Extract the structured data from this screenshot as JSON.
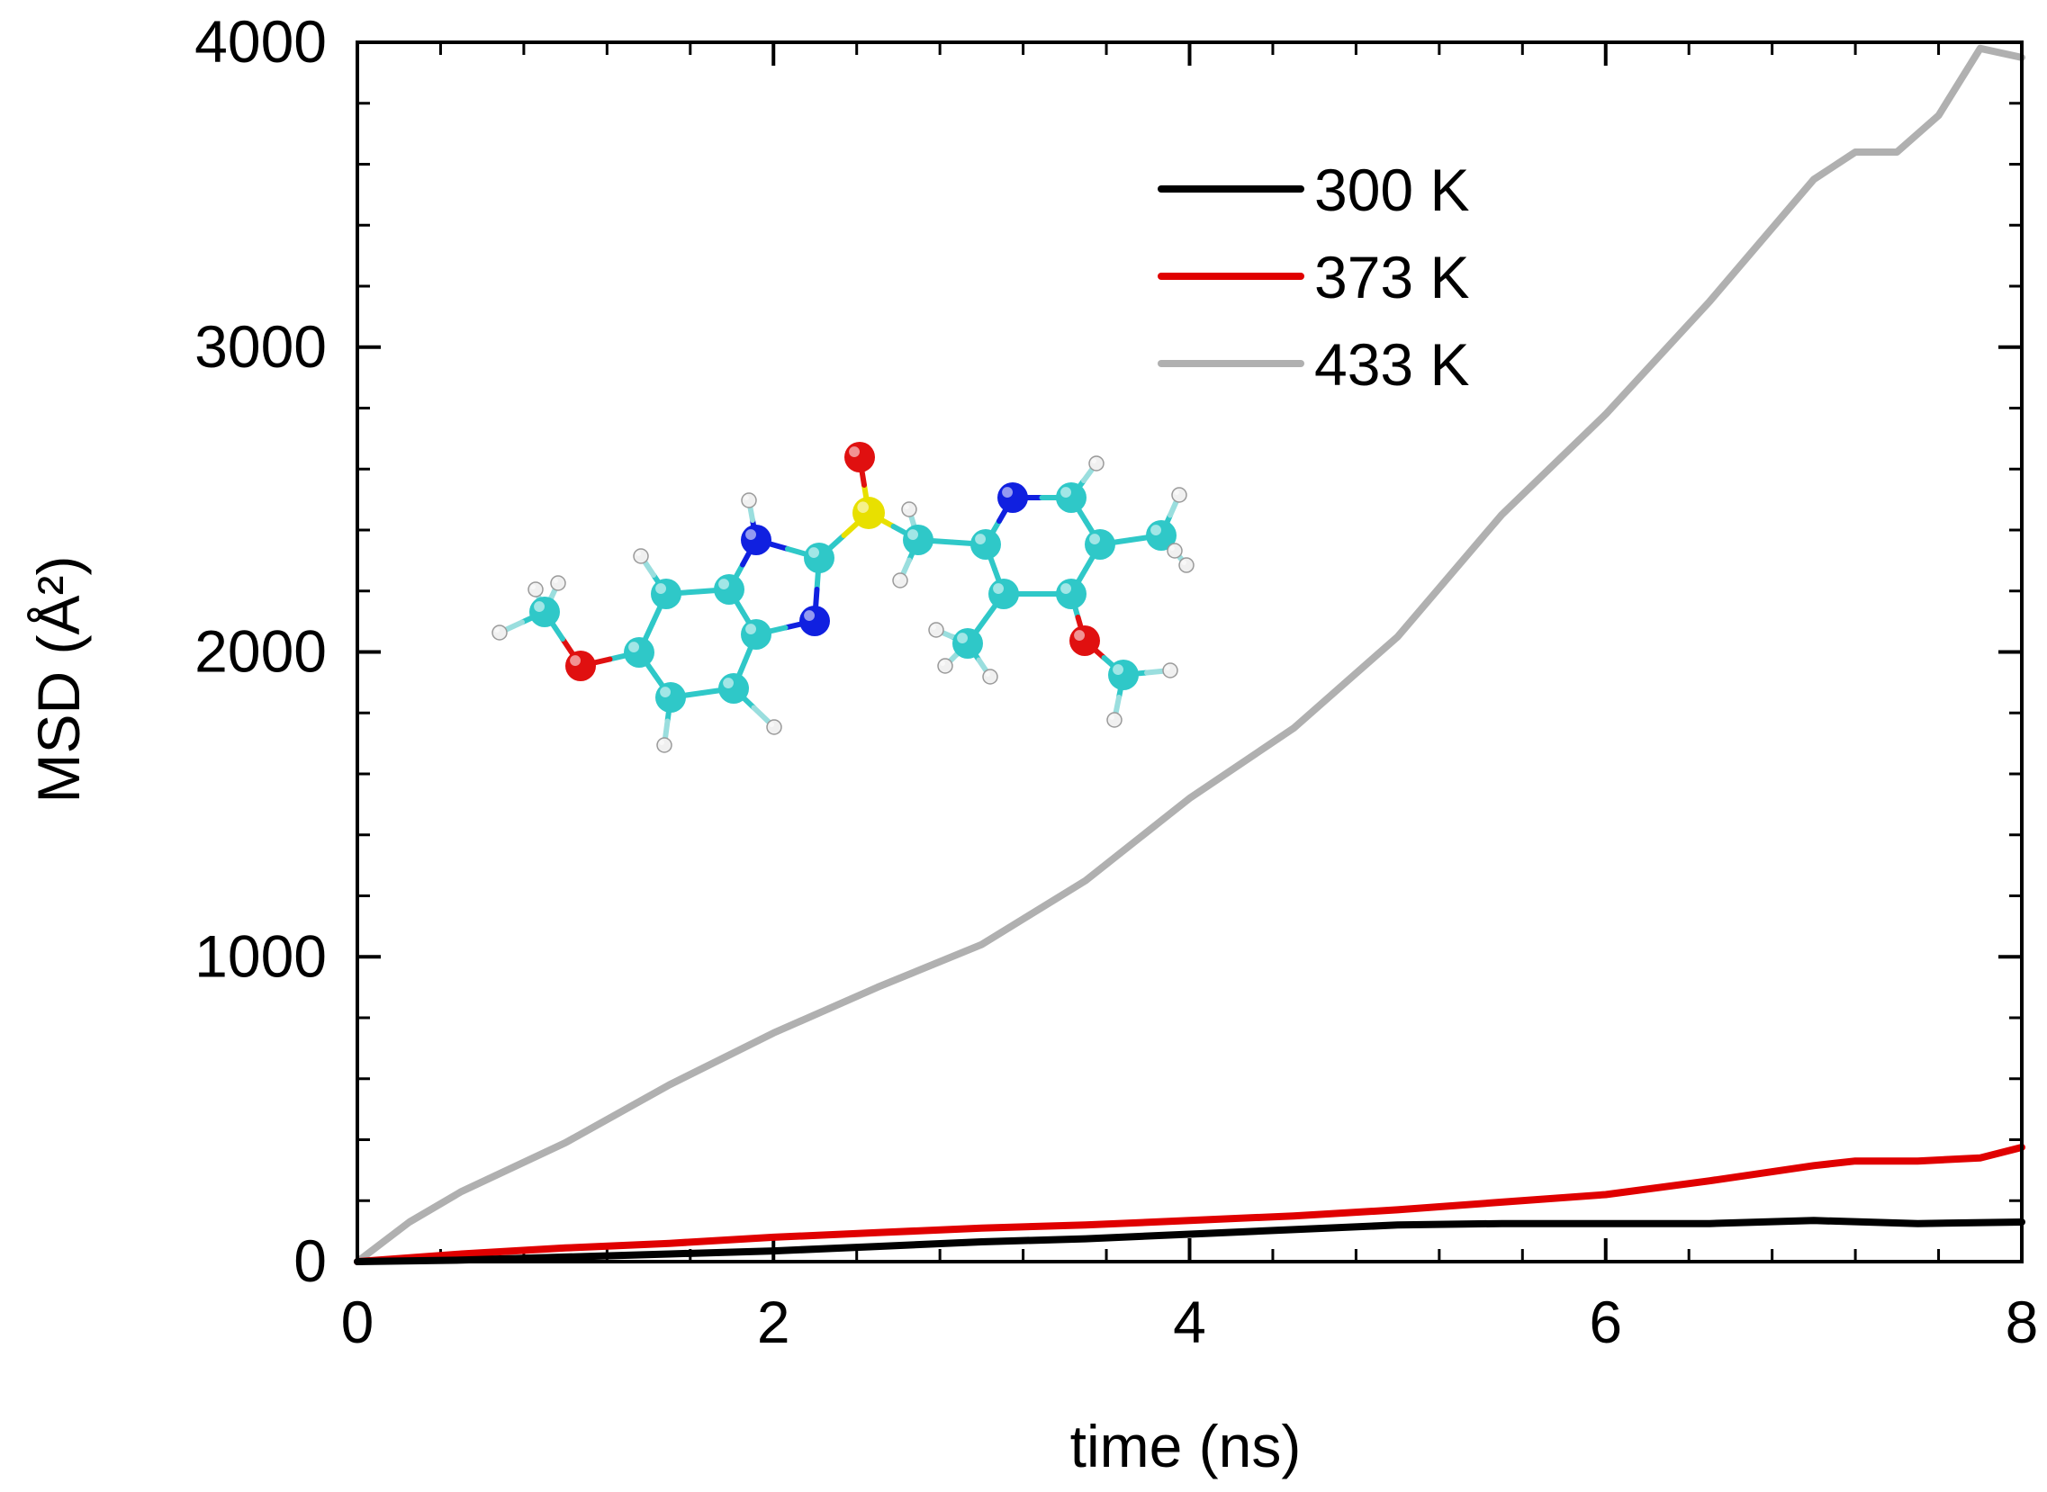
{
  "chart_data": {
    "type": "line",
    "title": "",
    "xlabel": "time (ns)",
    "ylabel": "MSD (Å²)",
    "xlim": [
      0,
      8
    ],
    "ylim": [
      0,
      4000
    ],
    "xticks": [
      0,
      2,
      4,
      6,
      8
    ],
    "yticks": [
      0,
      1000,
      2000,
      3000,
      4000
    ],
    "x_minor_step": 0.4,
    "y_minor_step": 200,
    "grid": false,
    "legend_position": "top-right",
    "series": [
      {
        "name": "300 K",
        "color": "#000000",
        "x": [
          0,
          0.5,
          1,
          1.5,
          2,
          2.5,
          3,
          3.5,
          4,
          4.5,
          5,
          5.5,
          6,
          6.5,
          7,
          7.5,
          8
        ],
        "y": [
          0,
          5,
          15,
          25,
          35,
          50,
          65,
          75,
          90,
          105,
          120,
          125,
          125,
          125,
          135,
          125,
          130
        ]
      },
      {
        "name": "373 K",
        "color": "#e00000",
        "x": [
          0,
          0.5,
          1,
          1.5,
          2,
          2.5,
          3,
          3.5,
          4,
          4.5,
          5,
          5.5,
          6,
          6.5,
          7,
          7.2,
          7.5,
          7.8,
          8
        ],
        "y": [
          0,
          25,
          45,
          60,
          80,
          95,
          110,
          120,
          135,
          150,
          170,
          195,
          220,
          265,
          315,
          330,
          330,
          340,
          375
        ]
      },
      {
        "name": "433 K",
        "color": "#b0b0b0",
        "x": [
          0,
          0.25,
          0.5,
          1,
          1.5,
          2,
          2.5,
          3,
          3.5,
          4,
          4.5,
          5,
          5.5,
          6,
          6.5,
          7,
          7.2,
          7.4,
          7.6,
          7.8,
          8
        ],
        "y": [
          0,
          130,
          230,
          390,
          580,
          750,
          900,
          1040,
          1250,
          1520,
          1750,
          2050,
          2450,
          2780,
          3150,
          3550,
          3640,
          3640,
          3760,
          3980,
          3950
        ]
      }
    ]
  },
  "inset": {
    "name": "omeprazole molecule ball-and-stick model",
    "colors": {
      "carbon": "#2fc8c8",
      "nitrogen": "#1020e0",
      "oxygen": "#e01010",
      "sulfur": "#e8e000",
      "hydrogen": "#f0f0f0"
    }
  }
}
